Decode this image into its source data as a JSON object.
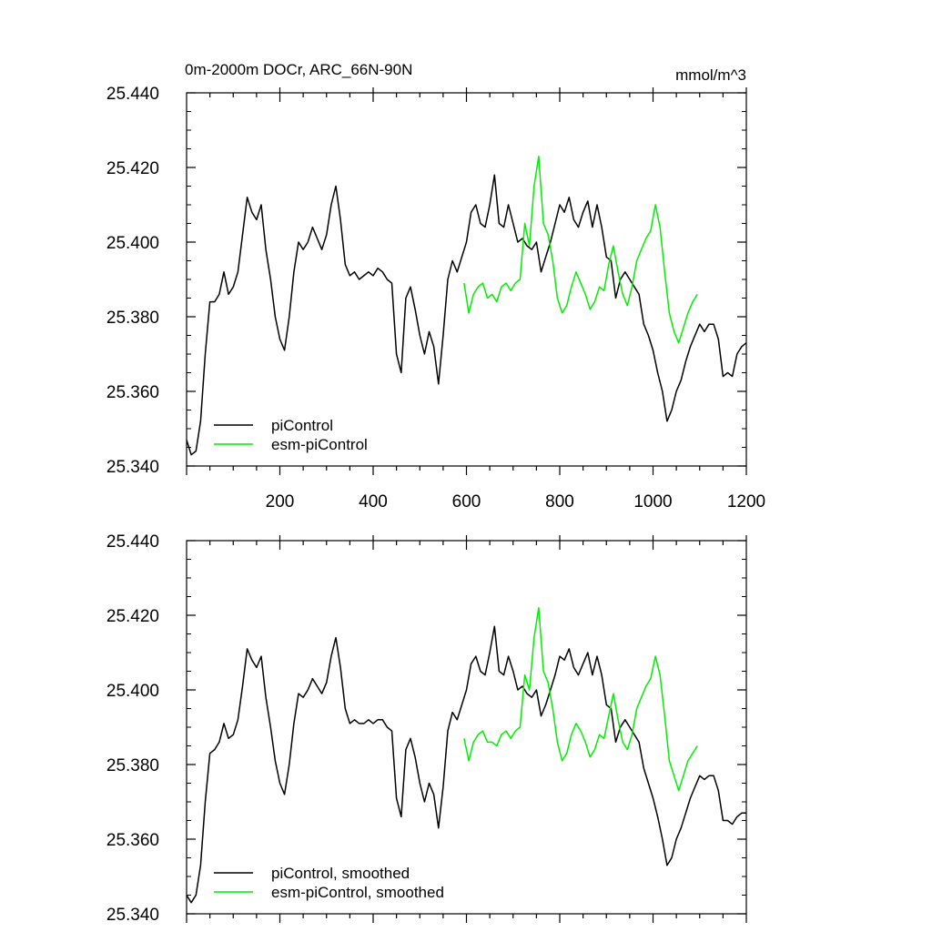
{
  "title_left": "0m-2000m DOCr, ARC_66N-90N",
  "title_right": "mmol/m^3",
  "colors": {
    "piControl": "#000000",
    "esm": "#00ee00"
  },
  "chart_data": [
    {
      "type": "line",
      "xlim": [
        0,
        1200
      ],
      "ylim": [
        25.34,
        25.44
      ],
      "yticks": [
        "25.440",
        "25.420",
        "25.400",
        "25.380",
        "25.360",
        "25.340"
      ],
      "xticks": [
        "200",
        "400",
        "600",
        "800",
        "1000",
        "1200"
      ],
      "legend_position": "bottom-left",
      "series": [
        {
          "name": "piControl",
          "color": "#000000",
          "x": [
            0,
            10,
            20,
            30,
            40,
            50,
            60,
            70,
            80,
            90,
            100,
            110,
            120,
            130,
            140,
            150,
            160,
            170,
            180,
            190,
            200,
            210,
            220,
            230,
            240,
            250,
            260,
            270,
            280,
            290,
            300,
            310,
            320,
            330,
            340,
            350,
            360,
            370,
            380,
            390,
            400,
            410,
            420,
            430,
            440,
            450,
            460,
            470,
            480,
            490,
            500,
            510,
            520,
            530,
            540,
            550,
            560,
            570,
            580,
            590,
            600,
            610,
            620,
            630,
            640,
            650,
            660,
            670,
            680,
            690,
            700,
            710,
            720,
            730,
            740,
            750,
            760,
            770,
            780,
            790,
            800,
            810,
            820,
            830,
            840,
            850,
            860,
            870,
            880,
            890,
            900,
            910,
            920,
            930,
            940,
            950,
            960,
            970,
            980,
            990,
            1000,
            1010,
            1020,
            1030,
            1040,
            1050,
            1060,
            1070,
            1080,
            1090,
            1100,
            1110,
            1120,
            1130,
            1140,
            1150,
            1160,
            1170,
            1180,
            1190,
            1200
          ],
          "y": [
            25.347,
            25.343,
            25.344,
            25.352,
            25.37,
            25.384,
            25.384,
            25.386,
            25.392,
            25.386,
            25.388,
            25.392,
            25.402,
            25.412,
            25.408,
            25.406,
            25.41,
            25.398,
            25.39,
            25.38,
            25.374,
            25.371,
            25.38,
            25.392,
            25.4,
            25.398,
            25.4,
            25.404,
            25.401,
            25.398,
            25.402,
            25.41,
            25.415,
            25.406,
            25.394,
            25.391,
            25.392,
            25.39,
            25.391,
            25.392,
            25.391,
            25.393,
            25.392,
            25.39,
            25.389,
            25.37,
            25.365,
            25.385,
            25.388,
            25.382,
            25.375,
            25.37,
            25.376,
            25.372,
            25.362,
            25.375,
            25.39,
            25.395,
            25.392,
            25.396,
            25.4,
            25.408,
            25.41,
            25.405,
            25.404,
            25.41,
            25.418,
            25.405,
            25.404,
            25.41,
            25.405,
            25.4,
            25.401,
            25.399,
            25.398,
            25.4,
            25.392,
            25.396,
            25.4,
            25.405,
            25.41,
            25.408,
            25.412,
            25.406,
            25.404,
            25.408,
            25.411,
            25.404,
            25.41,
            25.404,
            25.396,
            25.395,
            25.385,
            25.39,
            25.392,
            25.39,
            25.388,
            25.386,
            25.378,
            25.375,
            25.371,
            25.365,
            25.36,
            25.352,
            25.355,
            25.36,
            25.363,
            25.368,
            25.372,
            25.375,
            25.378,
            25.376,
            25.378,
            25.378,
            25.374,
            25.364,
            25.365,
            25.364,
            25.37,
            25.372,
            25.373
          ]
        },
        {
          "name": "esm-piControl",
          "color": "#00ee00",
          "x": [
            595,
            605,
            615,
            625,
            635,
            645,
            655,
            665,
            675,
            685,
            695,
            705,
            715,
            725,
            735,
            745,
            755,
            765,
            775,
            785,
            795,
            805,
            815,
            825,
            835,
            845,
            855,
            865,
            875,
            885,
            895,
            905,
            915,
            925,
            935,
            945,
            955,
            965,
            975,
            985,
            995,
            1005,
            1015,
            1025,
            1035,
            1045,
            1055,
            1065,
            1075,
            1085,
            1095
          ],
          "y": [
            25.389,
            25.381,
            25.386,
            25.388,
            25.389,
            25.385,
            25.386,
            25.384,
            25.388,
            25.389,
            25.387,
            25.389,
            25.39,
            25.405,
            25.399,
            25.415,
            25.423,
            25.405,
            25.402,
            25.395,
            25.385,
            25.381,
            25.383,
            25.388,
            25.392,
            25.389,
            25.386,
            25.382,
            25.384,
            25.388,
            25.387,
            25.394,
            25.399,
            25.392,
            25.386,
            25.383,
            25.388,
            25.395,
            25.398,
            25.401,
            25.403,
            25.41,
            25.404,
            25.392,
            25.381,
            25.376,
            25.373,
            25.377,
            25.381,
            25.384,
            25.386
          ]
        }
      ]
    },
    {
      "type": "line",
      "xlim": [
        0,
        1200
      ],
      "ylim": [
        25.34,
        25.44
      ],
      "yticks": [
        "25.440",
        "25.420",
        "25.400",
        "25.380",
        "25.360",
        "25.340"
      ],
      "legend_position": "bottom-left",
      "series": [
        {
          "name": "piControl, smoothed",
          "color": "#000000",
          "x": [
            0,
            10,
            20,
            30,
            40,
            50,
            60,
            70,
            80,
            90,
            100,
            110,
            120,
            130,
            140,
            150,
            160,
            170,
            180,
            190,
            200,
            210,
            220,
            230,
            240,
            250,
            260,
            270,
            280,
            290,
            300,
            310,
            320,
            330,
            340,
            350,
            360,
            370,
            380,
            390,
            400,
            410,
            420,
            430,
            440,
            450,
            460,
            470,
            480,
            490,
            500,
            510,
            520,
            530,
            540,
            550,
            560,
            570,
            580,
            590,
            600,
            610,
            620,
            630,
            640,
            650,
            660,
            670,
            680,
            690,
            700,
            710,
            720,
            730,
            740,
            750,
            760,
            770,
            780,
            790,
            800,
            810,
            820,
            830,
            840,
            850,
            860,
            870,
            880,
            890,
            900,
            910,
            920,
            930,
            940,
            950,
            960,
            970,
            980,
            990,
            1000,
            1010,
            1020,
            1030,
            1040,
            1050,
            1060,
            1070,
            1080,
            1090,
            1100,
            1110,
            1120,
            1130,
            1140,
            1150,
            1160,
            1170,
            1180,
            1190,
            1200
          ],
          "y": [
            25.345,
            25.343,
            25.345,
            25.353,
            25.37,
            25.383,
            25.384,
            25.386,
            25.391,
            25.387,
            25.388,
            25.392,
            25.401,
            25.411,
            25.408,
            25.406,
            25.409,
            25.398,
            25.39,
            25.381,
            25.375,
            25.372,
            25.38,
            25.391,
            25.399,
            25.398,
            25.4,
            25.403,
            25.401,
            25.399,
            25.402,
            25.409,
            25.414,
            25.406,
            25.395,
            25.391,
            25.392,
            25.391,
            25.391,
            25.392,
            25.391,
            25.392,
            25.392,
            25.39,
            25.389,
            25.371,
            25.366,
            25.384,
            25.387,
            25.382,
            25.375,
            25.37,
            25.375,
            25.372,
            25.363,
            25.374,
            25.389,
            25.394,
            25.392,
            25.396,
            25.4,
            25.407,
            25.409,
            25.405,
            25.404,
            25.41,
            25.417,
            25.405,
            25.404,
            25.409,
            25.405,
            25.4,
            25.401,
            25.399,
            25.398,
            25.4,
            25.393,
            25.396,
            25.4,
            25.404,
            25.409,
            25.408,
            25.411,
            25.406,
            25.404,
            25.407,
            25.41,
            25.404,
            25.409,
            25.404,
            25.396,
            25.395,
            25.386,
            25.39,
            25.392,
            25.39,
            25.388,
            25.386,
            25.379,
            25.375,
            25.371,
            25.366,
            25.36,
            25.353,
            25.355,
            25.36,
            25.363,
            25.367,
            25.371,
            25.374,
            25.377,
            25.376,
            25.377,
            25.377,
            25.373,
            25.365,
            25.365,
            25.364,
            25.366,
            25.367,
            25.367
          ]
        },
        {
          "name": "esm-piControl, smoothed",
          "color": "#00ee00",
          "x": [
            595,
            605,
            615,
            625,
            635,
            645,
            655,
            665,
            675,
            685,
            695,
            705,
            715,
            725,
            735,
            745,
            755,
            765,
            775,
            785,
            795,
            805,
            815,
            825,
            835,
            845,
            855,
            865,
            875,
            885,
            895,
            905,
            915,
            925,
            935,
            945,
            955,
            965,
            975,
            985,
            995,
            1005,
            1015,
            1025,
            1035,
            1045,
            1055,
            1065,
            1075,
            1085,
            1095
          ],
          "y": [
            25.387,
            25.381,
            25.386,
            25.388,
            25.389,
            25.386,
            25.386,
            25.385,
            25.388,
            25.389,
            25.387,
            25.389,
            25.39,
            25.404,
            25.4,
            25.414,
            25.422,
            25.405,
            25.402,
            25.395,
            25.386,
            25.381,
            25.383,
            25.388,
            25.391,
            25.389,
            25.386,
            25.382,
            25.384,
            25.388,
            25.387,
            25.393,
            25.399,
            25.392,
            25.386,
            25.384,
            25.388,
            25.395,
            25.398,
            25.401,
            25.403,
            25.409,
            25.404,
            25.393,
            25.381,
            25.377,
            25.373,
            25.377,
            25.381,
            25.383,
            25.385
          ]
        }
      ]
    }
  ]
}
